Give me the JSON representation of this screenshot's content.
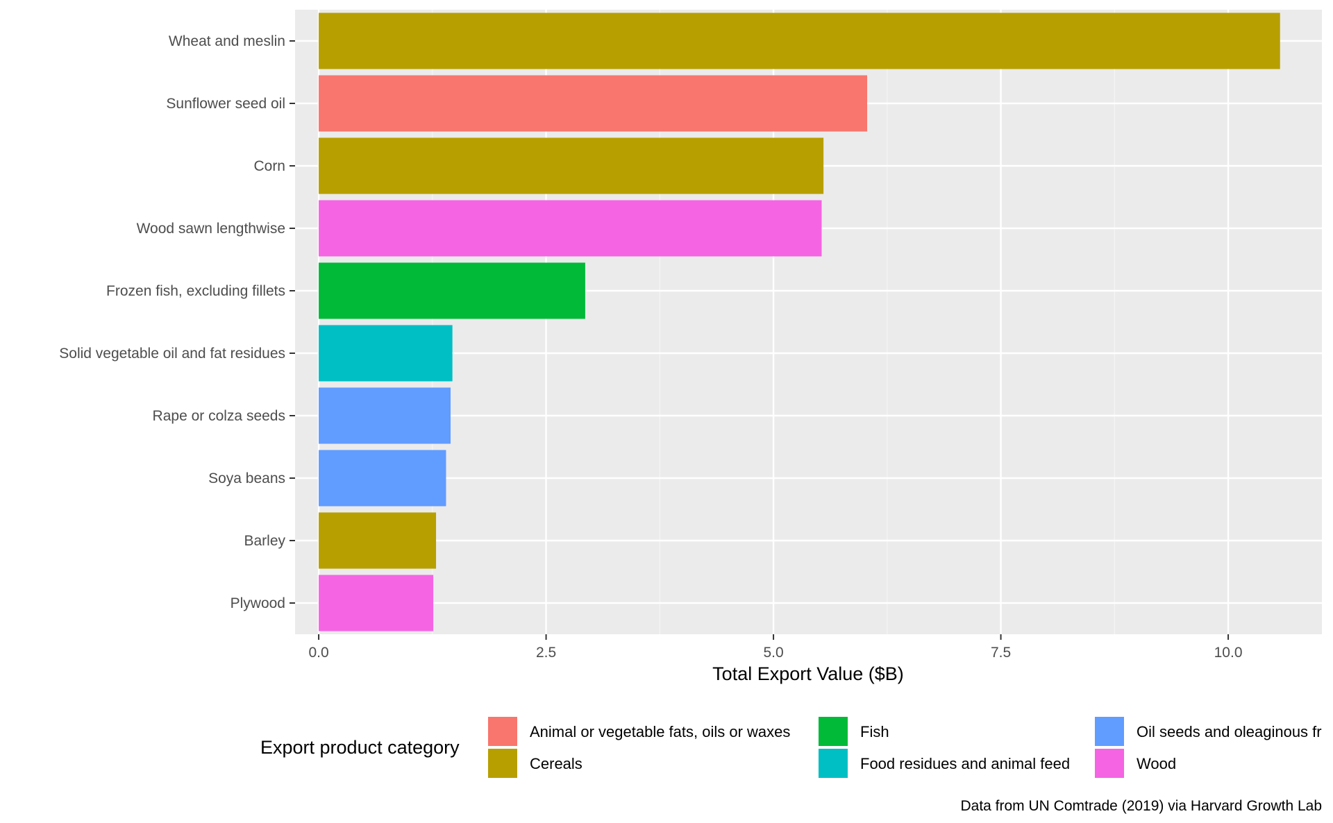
{
  "chart_data": {
    "type": "bar",
    "orientation": "horizontal",
    "title": "",
    "xlabel": "Total Export Value ($B)",
    "ylabel": "",
    "xlim": [
      -0.26,
      11.03
    ],
    "xticks": [
      "0.0",
      "2.5",
      "5.0",
      "7.5",
      "10.0"
    ],
    "xtick_values": [
      0,
      2.5,
      5,
      7.5,
      10
    ],
    "grid": true,
    "categories": [
      "Wheat and meslin",
      "Sunflower seed oil",
      "Corn",
      "Wood sawn lengthwise",
      "Frozen fish, excluding fillets",
      "Solid vegetable oil and fat residues",
      "Rape or colza seeds",
      "Soya beans",
      "Barley",
      "Plywood"
    ],
    "values": [
      10.57,
      6.03,
      5.55,
      5.53,
      2.93,
      1.47,
      1.45,
      1.4,
      1.29,
      1.26
    ],
    "bar_categories": [
      "Cereals",
      "Animal or vegetable fats, oils or waxes",
      "Cereals",
      "Wood",
      "Fish",
      "Food residues and animal feed",
      "Oil seeds and oleaginous fr",
      "Oil seeds and oleaginous fr",
      "Cereals",
      "Wood"
    ],
    "legend": {
      "title": "Export product category",
      "placement": "bottom",
      "entries": [
        {
          "label": "Animal or vegetable fats, oils or waxes",
          "color": "#F8766D"
        },
        {
          "label": "Cereals",
          "color": "#B79F00"
        },
        {
          "label": "Fish",
          "color": "#00BA38"
        },
        {
          "label": "Food residues and animal feed",
          "color": "#00BFC4"
        },
        {
          "label": "Oil seeds and oleaginous fr",
          "color": "#619CFF"
        },
        {
          "label": "Wood",
          "color": "#F564E3"
        }
      ]
    },
    "caption": "Data from UN Comtrade (2019) via Harvard Growth Lab"
  },
  "colors": {
    "panel_background": "#EBEBEB",
    "grid_major": "#FFFFFF",
    "grid_minor": "#F5F5F5",
    "tick_text": "#4D4D4D"
  }
}
